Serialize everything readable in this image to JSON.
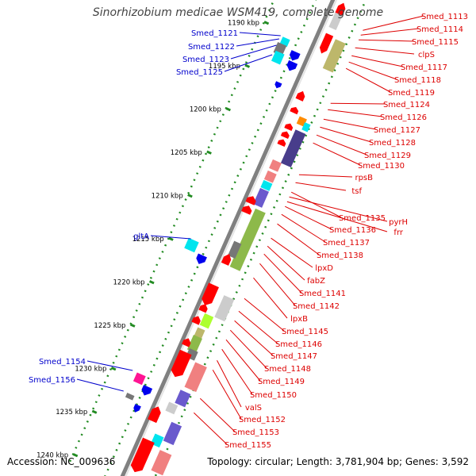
{
  "title": "Sinorhizobium medicae WSM419, complete genome",
  "accession": "Accession: NC_009636",
  "topology": "Topology: circular; Length: 3,781,904 bp; Genes: 3,592",
  "colors": {
    "backbone": "#808080",
    "ticks": "#228b22",
    "forward_labels": "#0000cc",
    "reverse_labels": "#dd0000",
    "gene_red": "#ff0000",
    "gene_blue": "#0000ee",
    "gene_cyan": "#00e5ee",
    "gene_grey": "#777777",
    "gene_light_grey": "#cccccc",
    "gene_pink": "#f08080",
    "gene_olive": "#8db94a",
    "gene_slate": "#6a5acd",
    "gene_navy": "#483d8b",
    "gene_khaki": "#bdb76b",
    "gene_orange": "#ff8c00",
    "gene_magenta": "#ff1493",
    "gene_lime": "#adff2f"
  },
  "kbp_ticks": [
    "1190 kbp",
    "1195 kbp",
    "1200 kbp",
    "1205 kbp",
    "1210 kbp",
    "1215 kbp",
    "1220 kbp",
    "1225 kbp",
    "1230 kbp",
    "1235 kbp",
    "1240 kbp"
  ],
  "forward_genes": [
    "Smed_1121",
    "Smed_1122",
    "Smed_1123",
    "Smed_1125",
    "gltA",
    "Smed_1154",
    "Smed_1156"
  ],
  "reverse_genes": [
    "Smed_1113",
    "Smed_1114",
    "Smed_1115",
    "clpS",
    "Smed_1117",
    "Smed_1118",
    "Smed_1119",
    "Smed_1124",
    "Smed_1126",
    "Smed_1127",
    "Smed_1128",
    "Smed_1129",
    "Smed_1130",
    "rpsB",
    "tsf",
    "Smed_1135",
    "pyrH",
    "frr",
    "Smed_1136",
    "Smed_1137",
    "Smed_1138",
    "lpxD",
    "fabZ",
    "Smed_1141",
    "Smed_1142",
    "lpxB",
    "Smed_1145",
    "Smed_1146",
    "Smed_1147",
    "Smed_1148",
    "Smed_1149",
    "Smed_1150",
    "valS",
    "Smed_1152",
    "Smed_1153",
    "Smed_1155"
  ]
}
